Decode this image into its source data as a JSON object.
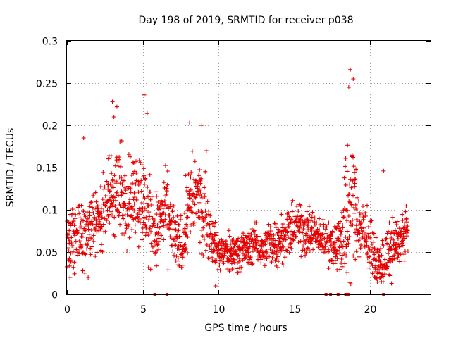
{
  "chart_data": {
    "type": "scatter",
    "title": "Day 198 of 2019, SRMTID for receiver p038",
    "xlabel": "GPS time / hours",
    "ylabel": "SRMTID / TECUs",
    "xlim": [
      0,
      24
    ],
    "ylim": [
      0,
      0.3
    ],
    "x_ticks": [
      0,
      5,
      10,
      15,
      20
    ],
    "x_tick_labels": [
      "0",
      "5",
      "10",
      "15",
      "20"
    ],
    "y_ticks": [
      0,
      0.05,
      0.1,
      0.15,
      0.2,
      0.25,
      0.3
    ],
    "y_tick_labels": [
      "0",
      "0.05",
      "0.1",
      "0.15",
      "0.2",
      "0.25",
      "0.3"
    ],
    "grid": true,
    "marker": "+",
    "color": "#e60000",
    "envelope": {
      "x": [
        0,
        0.5,
        1,
        1.5,
        2,
        2.5,
        3,
        3.5,
        4,
        4.5,
        5,
        5.5,
        6,
        6.5,
        7,
        7.5,
        8,
        8.5,
        9,
        9.5,
        10,
        10.5,
        11,
        11.5,
        12,
        12.5,
        13,
        13.5,
        14,
        14.5,
        15,
        15.5,
        16,
        16.5,
        17,
        17.5,
        18,
        18.5,
        19,
        19.5,
        20,
        20.5,
        21,
        21.5,
        22,
        22.5
      ],
      "center": [
        0.065,
        0.07,
        0.075,
        0.08,
        0.09,
        0.1,
        0.12,
        0.12,
        0.115,
        0.12,
        0.11,
        0.085,
        0.075,
        0.1,
        0.07,
        0.055,
        0.1,
        0.12,
        0.1,
        0.07,
        0.05,
        0.05,
        0.05,
        0.055,
        0.055,
        0.06,
        0.055,
        0.06,
        0.065,
        0.07,
        0.08,
        0.08,
        0.075,
        0.07,
        0.065,
        0.06,
        0.06,
        0.1,
        0.1,
        0.07,
        0.06,
        0.035,
        0.04,
        0.06,
        0.065,
        0.075
      ],
      "spread": [
        0.03,
        0.035,
        0.04,
        0.035,
        0.035,
        0.04,
        0.055,
        0.05,
        0.05,
        0.05,
        0.055,
        0.045,
        0.04,
        0.045,
        0.035,
        0.03,
        0.05,
        0.045,
        0.045,
        0.03,
        0.02,
        0.02,
        0.02,
        0.02,
        0.02,
        0.02,
        0.02,
        0.025,
        0.025,
        0.025,
        0.025,
        0.03,
        0.025,
        0.02,
        0.02,
        0.025,
        0.03,
        0.08,
        0.06,
        0.03,
        0.03,
        0.02,
        0.025,
        0.03,
        0.025,
        0.025
      ],
      "step_hours": 0.02
    },
    "notable_points": [
      {
        "x": 18.7,
        "y": 0.266
      },
      {
        "x": 18.9,
        "y": 0.255
      },
      {
        "x": 18.6,
        "y": 0.245
      },
      {
        "x": 5.1,
        "y": 0.236
      },
      {
        "x": 3.0,
        "y": 0.228
      },
      {
        "x": 3.3,
        "y": 0.222
      },
      {
        "x": 3.1,
        "y": 0.21
      },
      {
        "x": 5.3,
        "y": 0.214
      },
      {
        "x": 8.1,
        "y": 0.203
      },
      {
        "x": 8.9,
        "y": 0.2
      },
      {
        "x": 1.1,
        "y": 0.185
      },
      {
        "x": 9.2,
        "y": 0.17
      },
      {
        "x": 20.9,
        "y": 0.146
      },
      {
        "x": 9.8,
        "y": 0.01
      },
      {
        "x": 0.2,
        "y": 0.02
      },
      {
        "x": 1.4,
        "y": 0.02
      }
    ],
    "gap_markers_x": [
      5.8,
      6.6,
      17.1,
      17.4,
      17.9,
      18.4,
      18.6,
      20.9
    ]
  }
}
